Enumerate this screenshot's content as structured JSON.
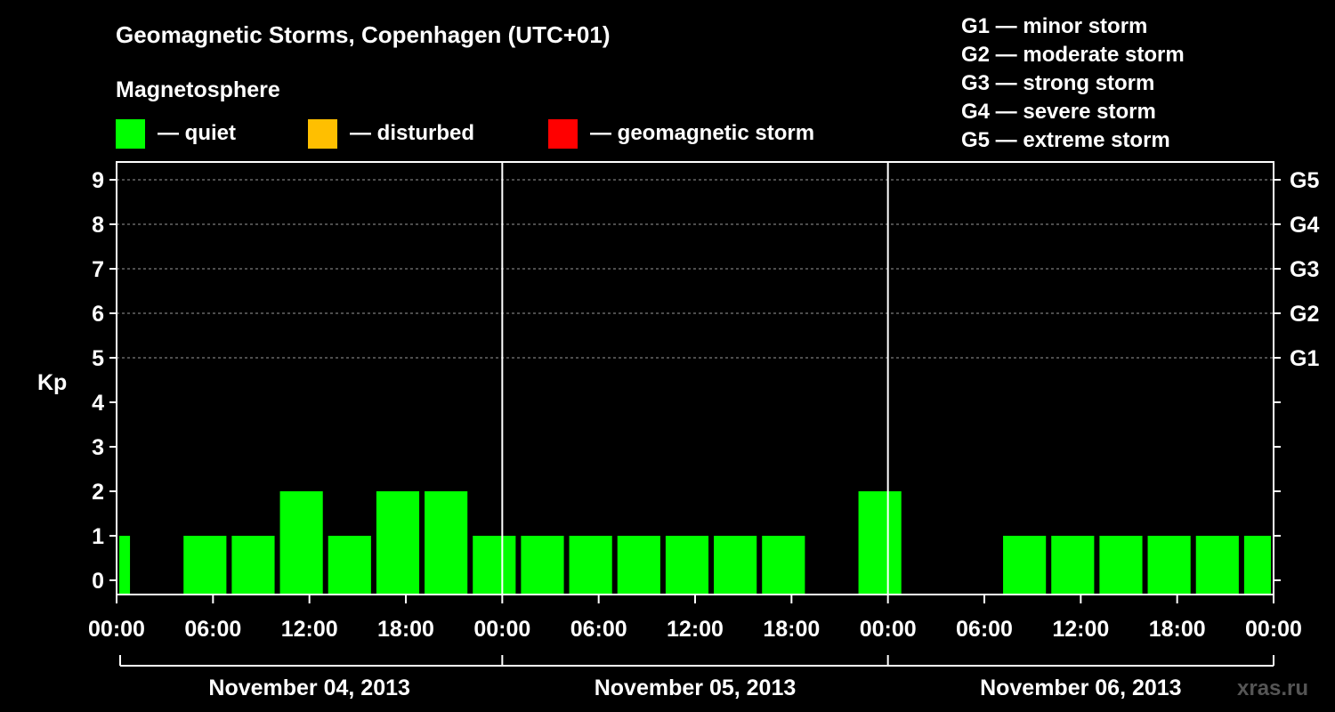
{
  "chart_data": {
    "type": "bar",
    "title": "Geomagnetic Storms, Copenhagen (UTC+01)",
    "subtitle": "Magnetosphere",
    "ylabel": "Kp",
    "ylim": [
      0,
      9
    ],
    "yticks": [
      "0",
      "1",
      "2",
      "3",
      "4",
      "5",
      "6",
      "7",
      "8",
      "9"
    ],
    "storm_levels": [
      {
        "label": "G1",
        "kp": 5
      },
      {
        "label": "G2",
        "kp": 6
      },
      {
        "label": "G3",
        "kp": 7
      },
      {
        "label": "G4",
        "kp": 8
      },
      {
        "label": "G5",
        "kp": 9
      }
    ],
    "storm_legend": [
      "G1 — minor storm",
      "G2 — moderate storm",
      "G3 — strong storm",
      "G4 — severe storm",
      "G5 — extreme storm"
    ],
    "status_legend": [
      {
        "label": "— quiet",
        "color": "#00ff00"
      },
      {
        "label": "— disturbed",
        "color": "#ffbf00"
      },
      {
        "label": "— geomagnetic storm",
        "color": "#ff0000"
      }
    ],
    "xrange_hours": [
      0,
      72
    ],
    "xticks": [
      {
        "hour": 0,
        "label": "00:00"
      },
      {
        "hour": 6,
        "label": "06:00"
      },
      {
        "hour": 12,
        "label": "12:00"
      },
      {
        "hour": 18,
        "label": "18:00"
      },
      {
        "hour": 24,
        "label": "00:00"
      },
      {
        "hour": 30,
        "label": "06:00"
      },
      {
        "hour": 36,
        "label": "12:00"
      },
      {
        "hour": 42,
        "label": "18:00"
      },
      {
        "hour": 48,
        "label": "00:00"
      },
      {
        "hour": 54,
        "label": "06:00"
      },
      {
        "hour": 60,
        "label": "12:00"
      },
      {
        "hour": 66,
        "label": "18:00"
      },
      {
        "hour": 72,
        "label": "00:00"
      }
    ],
    "days": [
      {
        "label": "November 04, 2013",
        "start_hour": 0
      },
      {
        "label": "November 05, 2013",
        "start_hour": 24
      },
      {
        "label": "November 06, 2013",
        "start_hour": 48
      }
    ],
    "bars": [
      {
        "start_hour": 0,
        "end_hour": 1,
        "kp": 1
      },
      {
        "start_hour": 4,
        "end_hour": 7,
        "kp": 1
      },
      {
        "start_hour": 7,
        "end_hour": 10,
        "kp": 1
      },
      {
        "start_hour": 10,
        "end_hour": 13,
        "kp": 2
      },
      {
        "start_hour": 13,
        "end_hour": 16,
        "kp": 1
      },
      {
        "start_hour": 16,
        "end_hour": 19,
        "kp": 2
      },
      {
        "start_hour": 19,
        "end_hour": 22,
        "kp": 2
      },
      {
        "start_hour": 22,
        "end_hour": 25,
        "kp": 1
      },
      {
        "start_hour": 25,
        "end_hour": 28,
        "kp": 1
      },
      {
        "start_hour": 28,
        "end_hour": 31,
        "kp": 1
      },
      {
        "start_hour": 31,
        "end_hour": 34,
        "kp": 1
      },
      {
        "start_hour": 34,
        "end_hour": 37,
        "kp": 1
      },
      {
        "start_hour": 37,
        "end_hour": 40,
        "kp": 1
      },
      {
        "start_hour": 40,
        "end_hour": 43,
        "kp": 1
      },
      {
        "start_hour": 46,
        "end_hour": 49,
        "kp": 2
      },
      {
        "start_hour": 55,
        "end_hour": 58,
        "kp": 1
      },
      {
        "start_hour": 58,
        "end_hour": 61,
        "kp": 1
      },
      {
        "start_hour": 61,
        "end_hour": 64,
        "kp": 1
      },
      {
        "start_hour": 64,
        "end_hour": 67,
        "kp": 1
      },
      {
        "start_hour": 67,
        "end_hour": 70,
        "kp": 1
      },
      {
        "start_hour": 70,
        "end_hour": 72,
        "kp": 1
      }
    ],
    "bar_color": "#00ff00",
    "watermark": "xras.ru"
  }
}
